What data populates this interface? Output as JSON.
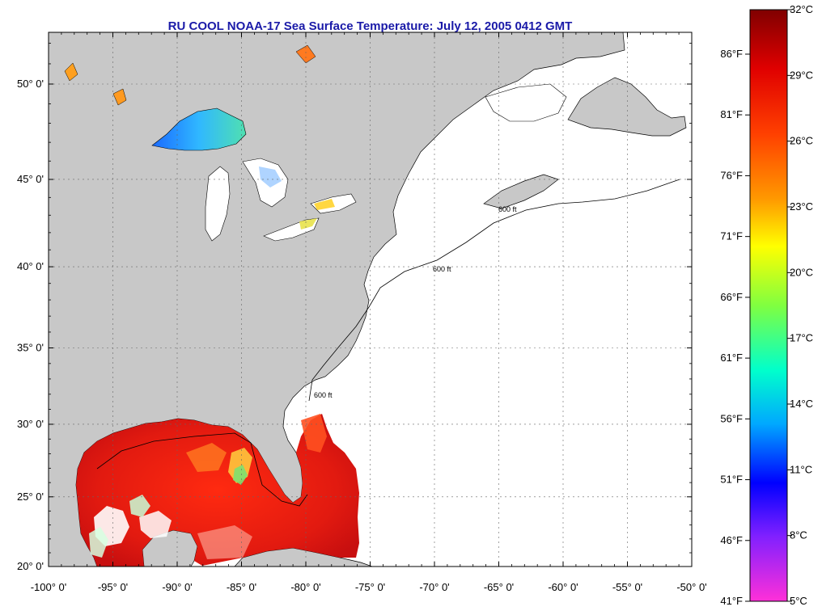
{
  "title": "RU COOL  NOAA-17  Sea Surface Temperature:  July 12, 2005 0412 GMT",
  "colors": {
    "land": "#c8c8c8",
    "ocean_no_data": "#ffffff",
    "title": "#1a1aa8",
    "grid": "#555555"
  },
  "map": {
    "lon_range": [
      -100,
      -50
    ],
    "lat_range": [
      20,
      52.3
    ],
    "lon_ticks": [
      "-100° 0'",
      "-95° 0'",
      "-90° 0'",
      "-85° 0'",
      "-80° 0'",
      "-75° 0'",
      "-70° 0'",
      "-65° 0'",
      "-60° 0'",
      "-55° 0'",
      "-50° 0'"
    ],
    "lat_ticks": [
      "20° 0'",
      "25° 0'",
      "30° 0'",
      "35° 0'",
      "40° 0'",
      "45° 0'",
      "50° 0'"
    ],
    "contour_label": "600 ft"
  },
  "colorbar": {
    "celsius_labels": [
      "32°C",
      "29°C",
      "26°C",
      "23°C",
      "20°C",
      "17°C",
      "14°C",
      "11°C",
      "8°C",
      "5°C"
    ],
    "fahrenheit_labels": [
      "86°F",
      "81°F",
      "76°F",
      "71°F",
      "66°F",
      "61°F",
      "56°F",
      "51°F",
      "46°F",
      "41°F"
    ]
  }
}
